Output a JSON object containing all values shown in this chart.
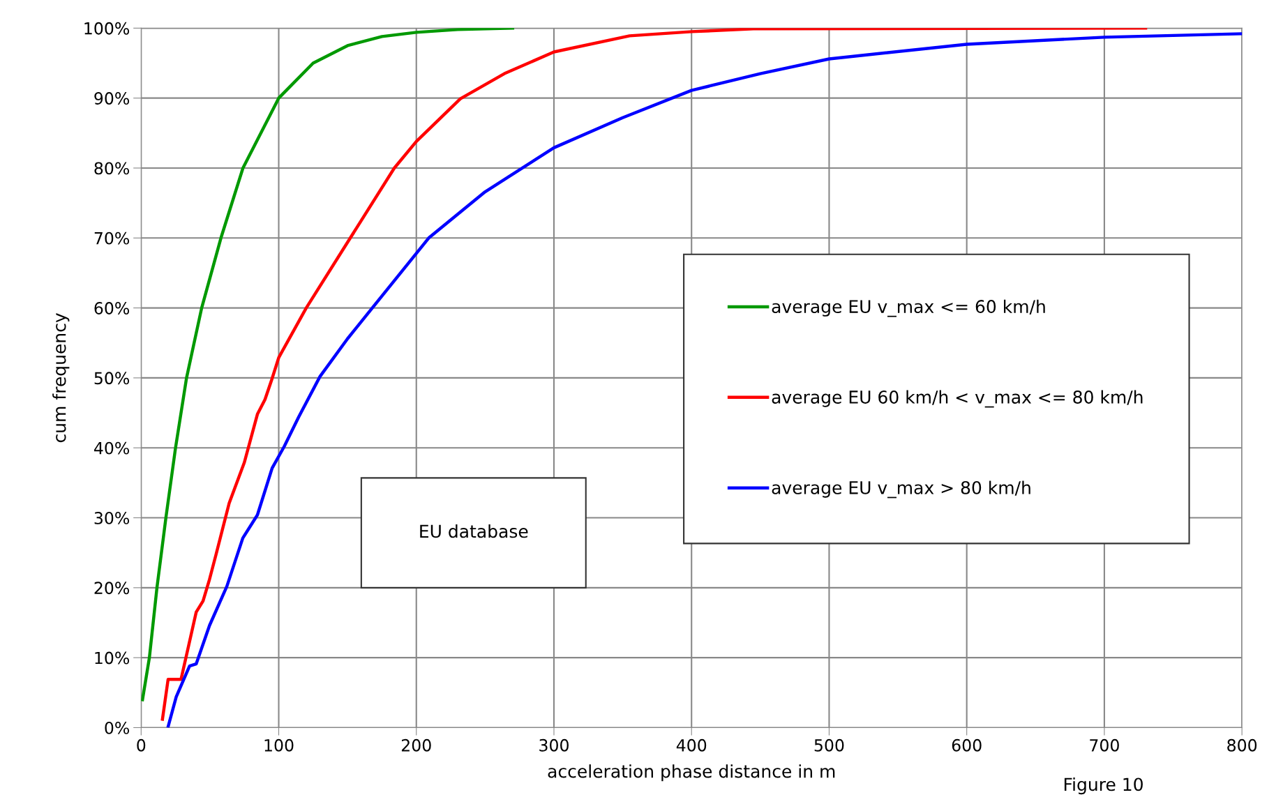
{
  "chart_data": {
    "type": "line",
    "xlabel": "acceleration phase distance in m",
    "ylabel": "cum frequency",
    "series": [
      {
        "name": "average EU v_max <= 60 km/h",
        "color": "#009900",
        "x": [
          1,
          6,
          11.5,
          18,
          25,
          33,
          44,
          58,
          74,
          100,
          125,
          150,
          175,
          200,
          230,
          270
        ],
        "values": [
          4,
          10,
          20,
          30,
          40,
          50,
          60,
          70,
          80,
          90,
          95,
          97.5,
          98.8,
          99.4,
          99.8,
          100
        ]
      },
      {
        "name": "average EU 60 km/h < v_max <= 80 km/h",
        "color": "#ff0000",
        "x": [
          15.5,
          19.6,
          29,
          40,
          45,
          49.7,
          54.5,
          64,
          75,
          84.5,
          90,
          95,
          100,
          120,
          152,
          184,
          200,
          232,
          264,
          300,
          355,
          400,
          445,
          730
        ],
        "values": [
          1.2,
          6.9,
          6.9,
          16.5,
          18.1,
          21.2,
          24.8,
          32.1,
          37.9,
          44.8,
          46.9,
          49.8,
          52.9,
          60,
          70,
          80,
          83.8,
          89.9,
          93.5,
          96.6,
          98.9,
          99.5,
          99.9,
          100
        ]
      },
      {
        "name": "average EU v_max > 80 km/h",
        "color": "#0000ff",
        "x": [
          19.7,
          25.5,
          35.2,
          40,
          49.7,
          62.3,
          73.9,
          84.5,
          95.2,
          104,
          114.5,
          130,
          150,
          168,
          200,
          209,
          250,
          300,
          350,
          400,
          450,
          500,
          600,
          700,
          800
        ],
        "values": [
          0.2,
          4.4,
          8.8,
          9.1,
          14.6,
          20.2,
          27.1,
          30.4,
          37.1,
          40.2,
          44.4,
          50.2,
          55.6,
          60,
          67.8,
          70,
          76.6,
          82.9,
          87.2,
          91.1,
          93.5,
          95.6,
          97.7,
          98.7,
          99.2
        ]
      }
    ],
    "xlim": [
      0,
      800
    ],
    "xticks": [
      0,
      100,
      200,
      300,
      400,
      500,
      600,
      700,
      800
    ],
    "ylim": [
      0,
      100
    ],
    "yticks": [
      {
        "value": 0,
        "label": "0%"
      },
      {
        "value": 10,
        "label": "10%"
      },
      {
        "value": 20,
        "label": "20%"
      },
      {
        "value": 30,
        "label": "30%"
      },
      {
        "value": 40,
        "label": "40%"
      },
      {
        "value": 50,
        "label": "50%"
      },
      {
        "value": 60,
        "label": "60%"
      },
      {
        "value": 70,
        "label": "70%"
      },
      {
        "value": 80,
        "label": "80%"
      },
      {
        "value": 90,
        "label": "90%"
      },
      {
        "value": 100,
        "label": "100%"
      }
    ],
    "grid": true,
    "legend": "center right",
    "marker": "none",
    "line_style": "solid",
    "annotations": [
      "EU database",
      "Figure 10"
    ]
  }
}
